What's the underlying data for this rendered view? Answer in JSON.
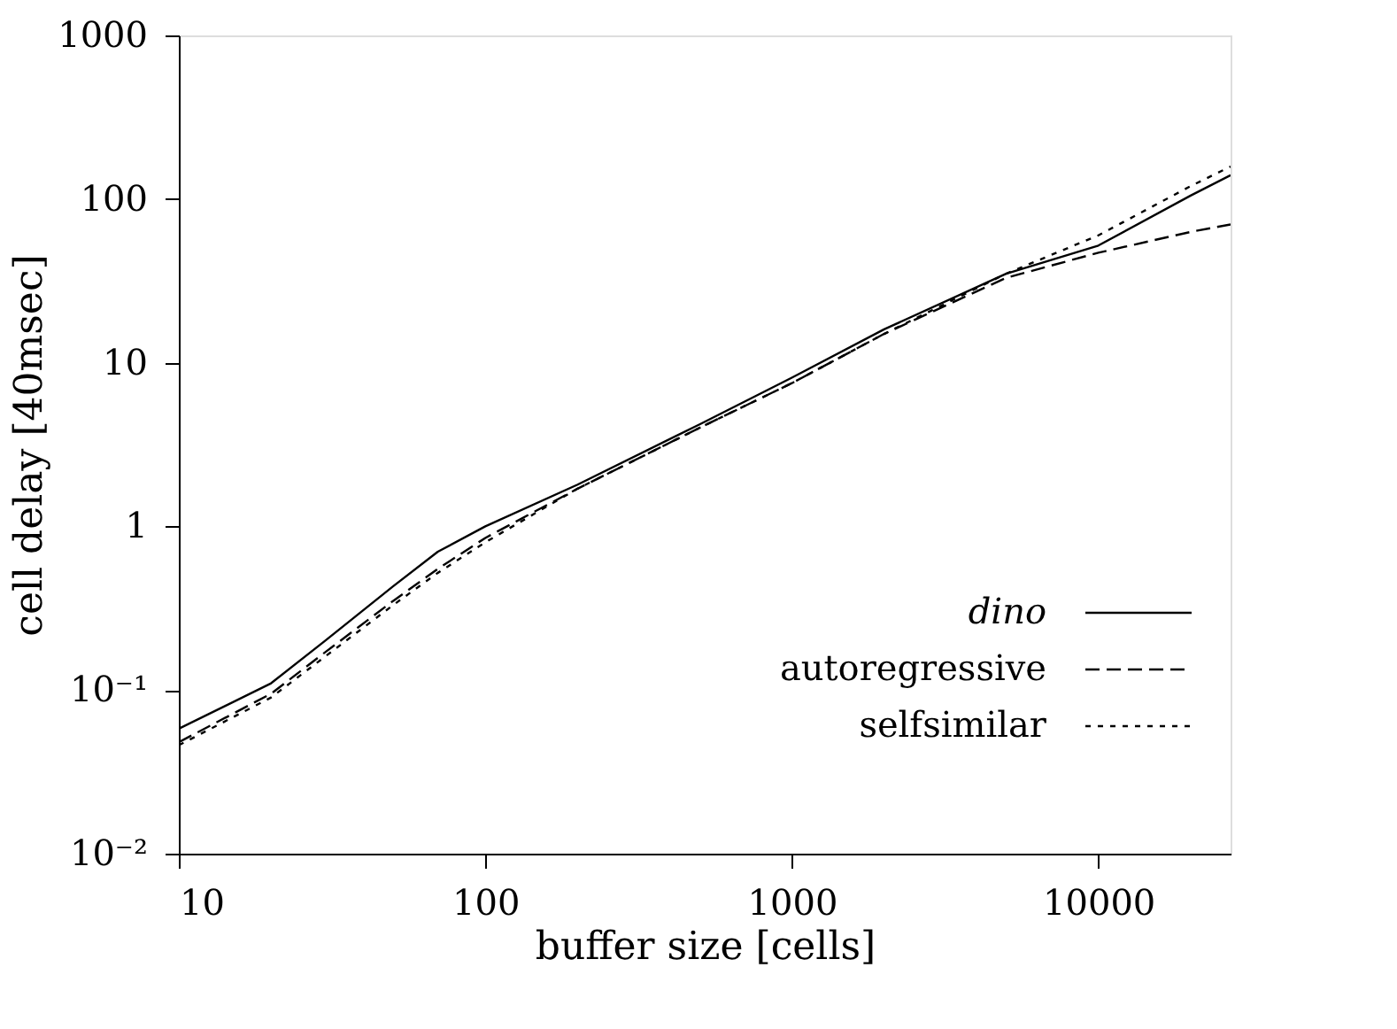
{
  "chart_data": {
    "type": "line",
    "xlabel": "buffer size [cells]",
    "ylabel": "cell delay [40msec]",
    "log": "xy",
    "grid": false,
    "legend": "bottom right",
    "marker": "none",
    "xlim": [
      10,
      27000
    ],
    "xticks": [
      10,
      100,
      1000,
      10000
    ],
    "ylim": [
      0.01,
      1000
    ],
    "yticks": [
      {
        "value": 0.01,
        "label": "10⁻²"
      },
      {
        "value": 0.1,
        "label": "10⁻¹"
      },
      1,
      10,
      100,
      1000
    ],
    "x": [
      10,
      20,
      30,
      50,
      70,
      100,
      200,
      500,
      1000,
      2000,
      5000,
      10000,
      20000,
      27000
    ],
    "series": [
      {
        "name": "dino",
        "color": "#000000",
        "line_style": "solid",
        "values": [
          0.058,
          0.11,
          0.2,
          0.43,
          0.7,
          1.0,
          1.8,
          4.2,
          8.1,
          16,
          35,
          52,
          105,
          140
        ]
      },
      {
        "name": "autoregressive",
        "color": "#000000",
        "line_style": "dashed",
        "values": [
          0.048,
          0.095,
          0.17,
          0.35,
          0.55,
          0.85,
          1.7,
          4,
          7.5,
          15,
          33,
          47,
          63,
          70
        ]
      },
      {
        "name": "selfsimilar",
        "color": "#000000",
        "line_style": "dotted",
        "values": [
          0.046,
          0.09,
          0.16,
          0.33,
          0.52,
          0.8,
          1.7,
          4,
          7.5,
          15,
          35,
          60,
          120,
          158
        ]
      }
    ]
  }
}
